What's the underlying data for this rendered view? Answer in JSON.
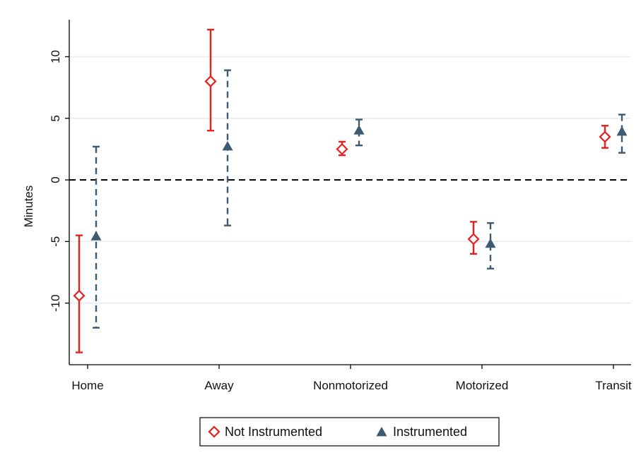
{
  "chart_data": {
    "type": "scatter",
    "subtype": "coefficient-plot-with-confidence-intervals",
    "title": "",
    "xlabel": "",
    "ylabel": "Minutes",
    "ylim": [
      -15,
      13
    ],
    "yticks": [
      -10,
      -5,
      0,
      5,
      10
    ],
    "yticks_labels": [
      "-10",
      "-5",
      "0",
      "5",
      "10"
    ],
    "categories": [
      "Home",
      "Away",
      "Nonmotorized",
      "Motorized",
      "Transit"
    ],
    "reference_line": {
      "y": 0,
      "style": "dashed"
    },
    "grid": true,
    "legend_position": "bottom",
    "series": [
      {
        "name": "Not Instrumented",
        "marker": "diamond-hollow",
        "color": "#e8201c",
        "line_style": "solid",
        "values": [
          -9.4,
          8.0,
          2.5,
          -4.8,
          3.5
        ],
        "ci_low": [
          -14.0,
          4.0,
          2.0,
          -6.0,
          2.6
        ],
        "ci_high": [
          -4.5,
          12.2,
          3.1,
          -3.4,
          4.4
        ]
      },
      {
        "name": "Instrumented",
        "marker": "triangle-filled",
        "color": "#3c5a72",
        "line_style": "dashed",
        "values": [
          -4.6,
          2.7,
          4.0,
          -5.2,
          3.9
        ],
        "ci_low": [
          -12.0,
          -3.7,
          2.8,
          -7.2,
          2.2
        ],
        "ci_high": [
          2.7,
          8.9,
          4.9,
          -3.5,
          5.3
        ]
      }
    ]
  }
}
